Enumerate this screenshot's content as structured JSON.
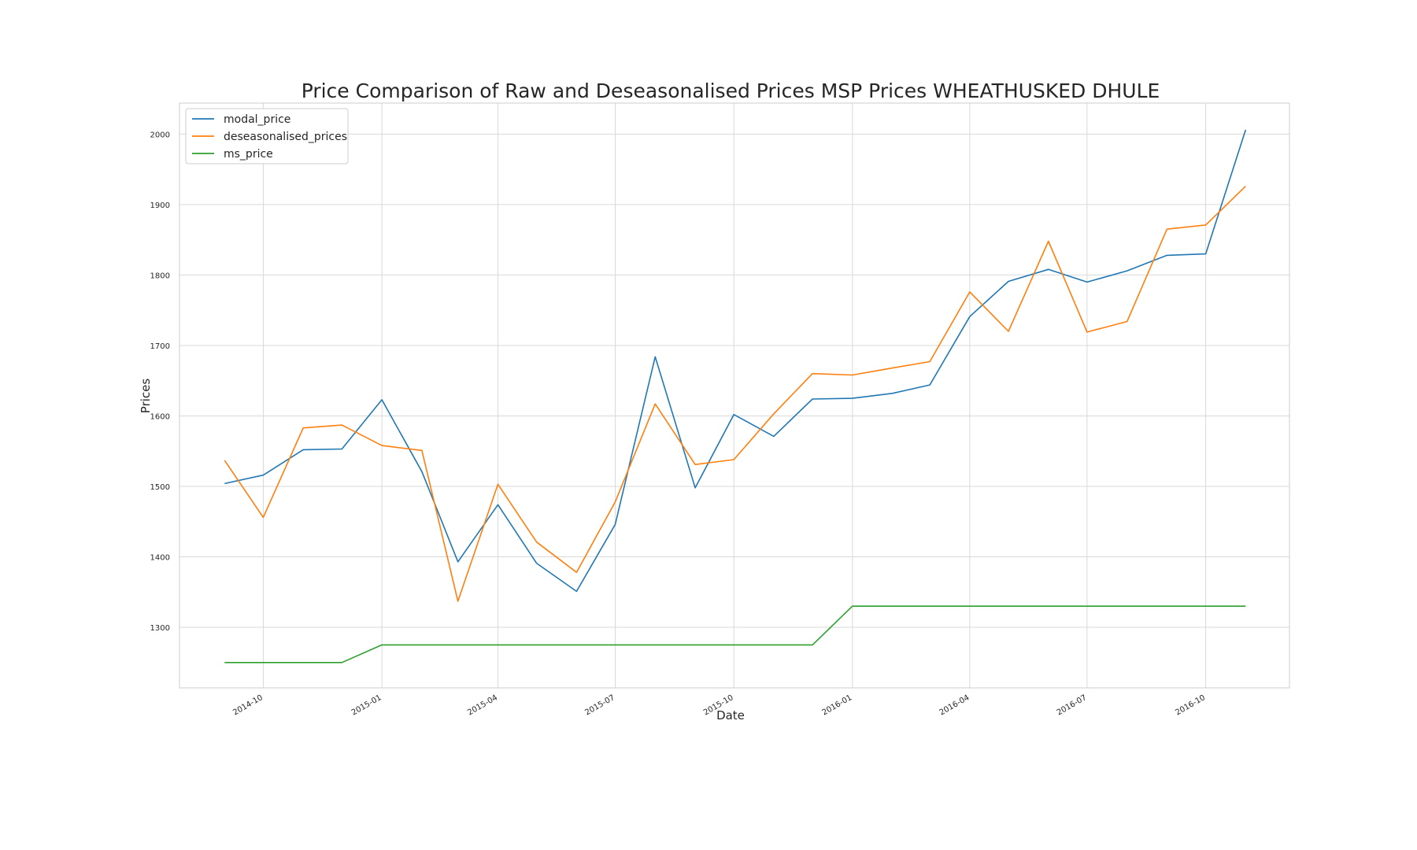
{
  "chart_data": {
    "type": "line",
    "title": "Price Comparison of Raw and Deseasonalised Prices MSP Prices WHEATHUSKED DHULE",
    "xlabel": "Date",
    "ylabel": "Prices",
    "x": [
      "2014-09",
      "2014-10",
      "2014-11",
      "2014-12",
      "2015-01",
      "2015-02",
      "2015-03",
      "2015-04",
      "2015-05",
      "2015-06",
      "2015-07",
      "2015-08",
      "2015-09",
      "2015-10",
      "2015-11",
      "2015-12",
      "2016-01",
      "2016-02",
      "2016-03",
      "2016-04",
      "2016-05",
      "2016-06",
      "2016-07",
      "2016-08",
      "2016-09",
      "2016-10",
      "2016-11"
    ],
    "xticks": [
      "2014-10",
      "2015-01",
      "2015-04",
      "2015-07",
      "2015-10",
      "2016-01",
      "2016-04",
      "2016-07",
      "2016-10"
    ],
    "yticks": [
      1300,
      1400,
      1500,
      1600,
      1700,
      1800,
      1900,
      2000
    ],
    "ylim": [
      1214,
      2044
    ],
    "xlim": [
      "2014-07-28",
      "2016-12-05"
    ],
    "grid": true,
    "legend_position": "top-left",
    "series": [
      {
        "name": "modal_price",
        "color": "#1f77b4",
        "values": [
          1504,
          1516,
          1552,
          1553,
          1623,
          1521,
          1393,
          1474,
          1391,
          1351,
          1446,
          1684,
          1498,
          1602,
          1571,
          1624,
          1625,
          1632,
          1644,
          1741,
          1791,
          1808,
          1790,
          1806,
          1828,
          1830,
          2006
        ]
      },
      {
        "name": "deseasonalised_prices",
        "color": "#ff7f0e",
        "values": [
          1537,
          1456,
          1583,
          1587,
          1558,
          1551,
          1337,
          1503,
          1421,
          1378,
          1478,
          1617,
          1531,
          1538,
          1603,
          1660,
          1658,
          1668,
          1677,
          1776,
          1720,
          1848,
          1719,
          1734,
          1865,
          1871,
          1926
        ]
      },
      {
        "name": "ms_price",
        "color": "#2ca02c",
        "values": [
          1250,
          1250,
          1250,
          1250,
          1275,
          1275,
          1275,
          1275,
          1275,
          1275,
          1275,
          1275,
          1275,
          1275,
          1275,
          1275,
          1330,
          1330,
          1330,
          1330,
          1330,
          1330,
          1330,
          1330,
          1330,
          1330,
          1330
        ]
      }
    ]
  }
}
